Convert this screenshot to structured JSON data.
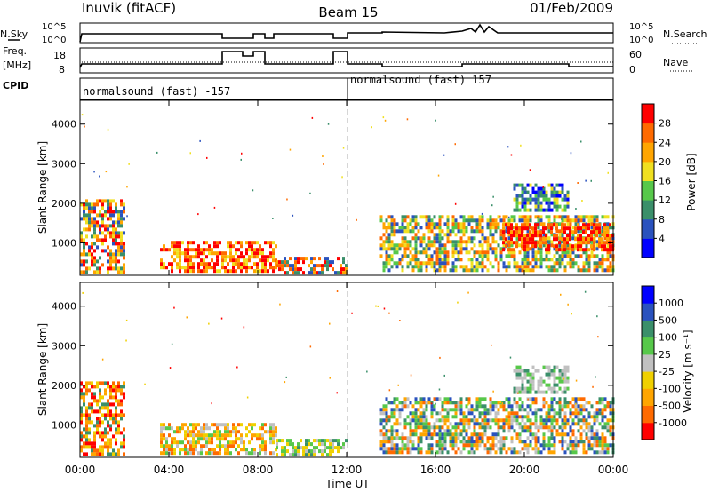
{
  "header": {
    "station": "Inuvik (fitACF)",
    "beam": "Beam 15",
    "date": "01/Feb/2009"
  },
  "status_panels": {
    "nsky_label": "N.Sky",
    "nsky_ticks": [
      "10^5",
      "10^0"
    ],
    "nsearch_label": "N.Search",
    "nsearch_ticks": [
      "10^5",
      "10^0"
    ],
    "freq_label_1": "Freq.",
    "freq_label_2": "[MHz]",
    "freq_ticks": [
      "18",
      "8"
    ],
    "nave_label": "Nave",
    "nave_ticks": [
      "60",
      "0"
    ],
    "cpid_label": "CPID",
    "cpid_segments": [
      "normalsound (fast) -157",
      "normalsound (fast) 157"
    ]
  },
  "chart_data": [
    {
      "type": "heatmap",
      "title": "Power",
      "xlabel": "",
      "ylabel": "Slant Range [km]",
      "x_ticks": [
        "00:00",
        "04:00",
        "08:00",
        "12:00",
        "16:00",
        "20:00",
        "00:00"
      ],
      "xlim_hours": [
        0,
        24
      ],
      "ylim": [
        180,
        4600
      ],
      "y_ticks": [
        1000,
        2000,
        3000,
        4000
      ],
      "colorbar_label": "Power [dB]",
      "colorbar_ticks": [
        "28",
        "24",
        "20",
        "16",
        "12",
        "8",
        "4"
      ],
      "colorbar_colors": [
        "#0000ff",
        "#2a52be",
        "#3a8f6a",
        "#57c84a",
        "#f0e020",
        "#ffa500",
        "#ff6a00",
        "#ff0000"
      ],
      "regions": [
        {
          "t": [
            0.0,
            2.0
          ],
          "r": [
            300,
            2100
          ],
          "level": "mixed-orange-red"
        },
        {
          "t": [
            3.6,
            8.8
          ],
          "r": [
            300,
            1050
          ],
          "level": "red-orange"
        },
        {
          "t": [
            8.8,
            12.0
          ],
          "r": [
            250,
            650
          ],
          "level": "orange-blue"
        },
        {
          "t": [
            13.5,
            24.0
          ],
          "r": [
            300,
            1700
          ],
          "level": "mixed-green-orange"
        },
        {
          "t": [
            19.0,
            24.0
          ],
          "r": [
            800,
            1500
          ],
          "level": "red"
        },
        {
          "t": [
            19.5,
            22.0
          ],
          "r": [
            1800,
            2500
          ],
          "level": "blue-green"
        }
      ]
    },
    {
      "type": "heatmap",
      "title": "Velocity",
      "xlabel": "Time UT",
      "ylabel": "Slant Range [km]",
      "x_ticks": [
        "00:00",
        "04:00",
        "08:00",
        "12:00",
        "16:00",
        "20:00",
        "00:00"
      ],
      "xlim_hours": [
        0,
        24
      ],
      "ylim": [
        180,
        4600
      ],
      "y_ticks": [
        1000,
        2000,
        3000,
        4000
      ],
      "colorbar_label": "Velocity [m s⁻¹]",
      "colorbar_ticks": [
        "1000",
        "500",
        "100",
        "25",
        "-25",
        "-100",
        "-500",
        "-1000"
      ],
      "colorbar_colors": [
        "#ff0000",
        "#ff6a00",
        "#ffa500",
        "#f0d000",
        "#c0c0c0",
        "#57c84a",
        "#3a8f6a",
        "#2a52be",
        "#0000ff"
      ],
      "regions": [
        {
          "t": [
            0.0,
            2.0
          ],
          "r": [
            300,
            2100
          ],
          "level": "orange"
        },
        {
          "t": [
            3.6,
            8.8
          ],
          "r": [
            300,
            1050
          ],
          "level": "grey-orange"
        },
        {
          "t": [
            8.8,
            12.0
          ],
          "r": [
            250,
            650
          ],
          "level": "green-grey"
        },
        {
          "t": [
            13.5,
            24.0
          ],
          "r": [
            300,
            1700
          ],
          "level": "green-orange"
        },
        {
          "t": [
            19.5,
            22.0
          ],
          "r": [
            1800,
            2500
          ],
          "level": "grey"
        }
      ]
    }
  ]
}
